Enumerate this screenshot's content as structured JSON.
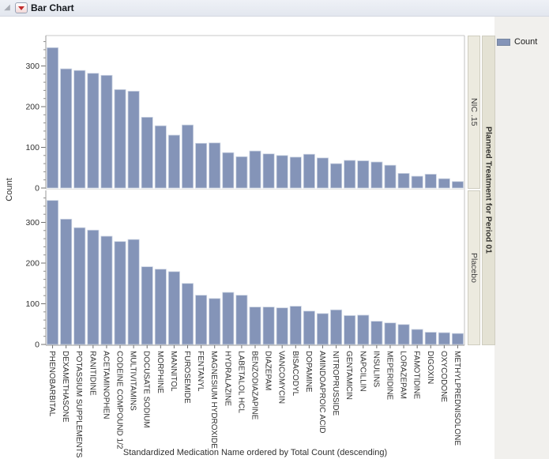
{
  "outline": {
    "title": "Bar Chart"
  },
  "legend": {
    "label": "Count",
    "swatch_color": "#8494b8"
  },
  "chart_data": {
    "type": "bar",
    "title": "Bar Chart",
    "xlabel": "Standardized Medication Name ordered by Total Count (descending)",
    "ylabel": "Count",
    "ylim": [
      0,
      375
    ],
    "yticks": [
      0,
      100,
      200,
      300
    ],
    "minor_tick_step": 20,
    "grid": false,
    "legend_position": "top-right",
    "bar_color": "#8494b8",
    "panel_group_label": "Planned Treatment for Period 01",
    "categories": [
      "PHENOBARBITAL",
      "DEXAMETHASONE",
      "POTASSIUM SUPPLEMENTS",
      "RANITIDINE",
      "ACETAMINOPHEN",
      "CODEINE COMPOUND 1/2",
      "MULTIVITAMINS",
      "DOCUSATE SODIUM",
      "MORPHINE",
      "MANNITOL",
      "FUROSEMIDE",
      "FENTANYL",
      "MAGNESIUM HYDROXIDE",
      "HYDRALAZINE",
      "LABETALOL HCL",
      "BENZODIAZAPINE",
      "DIAZEPAM",
      "VANCOMYCIN",
      "BISACODYL",
      "DOPAMINE",
      "AMINDOAPROIC ACID",
      "NITROPRUSSIDE",
      "GENTAMICIN",
      "NAPCILLIN",
      "INSULINS",
      "MEPERIDINE",
      "LORAZEPAM",
      "FAMOTIDINE",
      "DIGOXIN",
      "OXYCODONE",
      "METHYLPREDNISOLONE"
    ],
    "series": [
      {
        "name": "NIC .15",
        "values": [
          345,
          293,
          289,
          282,
          277,
          242,
          238,
          174,
          153,
          130,
          155,
          110,
          111,
          87,
          77,
          91,
          84,
          80,
          76,
          83,
          74,
          60,
          68,
          67,
          64,
          56,
          36,
          29,
          34,
          23,
          16
        ]
      },
      {
        "name": "Placebo",
        "values": [
          354,
          308,
          287,
          281,
          266,
          253,
          258,
          191,
          185,
          179,
          150,
          121,
          113,
          128,
          121,
          92,
          92,
          90,
          94,
          82,
          76,
          85,
          71,
          72,
          57,
          53,
          49,
          37,
          30,
          29,
          27
        ]
      }
    ]
  }
}
